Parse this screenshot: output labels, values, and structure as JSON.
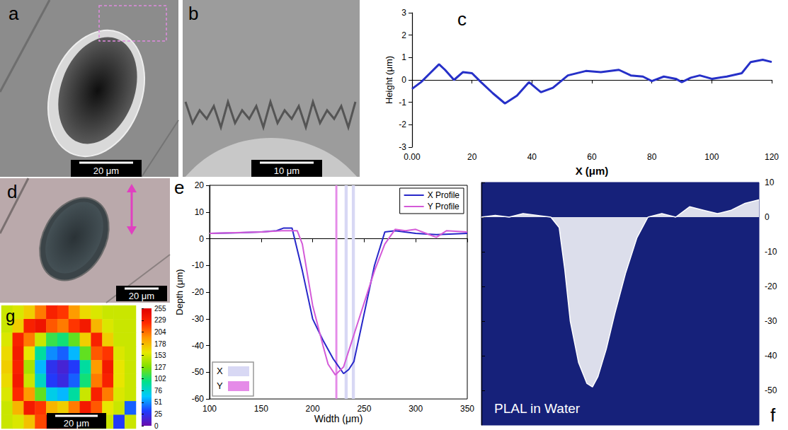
{
  "panels": {
    "a": {
      "title": "a",
      "scale_bar": "20 μm"
    },
    "b": {
      "title": "b",
      "scale_bar": "10 μm"
    },
    "d": {
      "title": "d",
      "scale_bar": "20 μm"
    }
  },
  "chart_data": [
    {
      "type": "line",
      "title": "c",
      "x_label": "X (μm)",
      "y_label": "Height (μm)",
      "x": [
        0,
        3,
        6,
        9,
        11,
        14,
        17,
        20,
        23,
        27,
        31,
        35,
        39,
        43,
        47,
        52,
        58,
        63,
        69,
        73,
        77,
        80,
        84,
        88,
        90,
        93,
        96,
        100,
        105,
        110,
        113,
        117,
        120
      ],
      "values": [
        -0.4,
        -0.1,
        0.3,
        0.7,
        0.45,
        0.0,
        0.35,
        0.3,
        -0.1,
        -0.6,
        -1.05,
        -0.7,
        -0.1,
        -0.55,
        -0.35,
        0.2,
        0.4,
        0.35,
        0.45,
        0.2,
        0.15,
        -0.05,
        0.15,
        0.05,
        -0.1,
        0.1,
        0.2,
        0.05,
        0.15,
        0.3,
        0.8,
        0.9,
        0.8
      ],
      "color": "#2630c8",
      "xlim": [
        0,
        120
      ],
      "xticks": [
        {
          "value": 0,
          "label": "0.00"
        },
        20,
        40,
        60,
        80,
        100,
        120
      ],
      "ylim": [
        -3,
        3
      ],
      "yticks": [
        -3,
        -2,
        -1,
        0,
        1,
        2,
        3
      ],
      "grid": false
    },
    {
      "type": "line",
      "title": "e",
      "x_label": "Width (μm)",
      "y_label": "Depth (μm)",
      "series": [
        {
          "name": "X Profile",
          "color": "#2727c9",
          "x": [
            100,
            125,
            150,
            165,
            172,
            180,
            190,
            200,
            210,
            220,
            230,
            235,
            240,
            250,
            260,
            270,
            280,
            300,
            320,
            350
          ],
          "values": [
            2,
            2.2,
            2.5,
            3,
            4,
            4,
            -12,
            -30,
            -38,
            -45,
            -50.5,
            -49,
            -46,
            -28,
            -10,
            2.5,
            3,
            2,
            1.5,
            2
          ]
        },
        {
          "name": "Y Profile",
          "color": "#d45ad8",
          "x": [
            100,
            150,
            170,
            185,
            190,
            200,
            210,
            215,
            222,
            230,
            240,
            250,
            260,
            270,
            280,
            290,
            300,
            310,
            320,
            330,
            350
          ],
          "values": [
            2,
            2.5,
            3,
            3,
            -2,
            -25,
            -40,
            -47,
            -51,
            -48,
            -36,
            -24,
            -12,
            -2,
            3.5,
            3,
            3.5,
            2,
            0.5,
            3,
            2.5
          ]
        }
      ],
      "bands": [
        {
          "name": "X",
          "color": "#d8d8f4",
          "ranges": [
            [
              231,
              234
            ],
            [
              238,
              241
            ]
          ]
        },
        {
          "name": "Y",
          "color": "#e58be8",
          "ranges": [
            [
              222,
              224
            ]
          ]
        }
      ],
      "xlim": [
        100,
        350
      ],
      "xticks": [
        100,
        150,
        200,
        250,
        300,
        350
      ],
      "ylim": [
        -60,
        20
      ],
      "yticks": [
        -60,
        -50,
        -40,
        -30,
        -20,
        -10,
        0,
        10,
        20
      ],
      "legend": "top-right",
      "grid": false
    },
    {
      "type": "area",
      "title": "f",
      "annotations": [
        "PLAL in Water"
      ],
      "x": [
        0,
        5,
        10,
        15,
        20,
        25,
        28,
        30,
        32,
        35,
        38,
        40,
        42,
        45,
        48,
        52,
        56,
        60,
        65,
        70,
        75,
        80,
        85,
        90,
        95,
        100
      ],
      "values": [
        0,
        0.5,
        0,
        1,
        0.5,
        0,
        -3,
        -15,
        -30,
        -42,
        -48,
        -49,
        -46,
        -38,
        -28,
        -16,
        -6,
        0,
        1,
        0,
        3,
        2,
        1,
        2,
        4,
        5
      ],
      "color": "#ffffff",
      "xlim": [
        0,
        100
      ],
      "ylim": [
        -60,
        10
      ],
      "yticks": [
        10,
        0,
        -10,
        -20,
        -30,
        -40,
        -50
      ],
      "tick_labels": "y",
      "grid": false
    },
    {
      "type": "heatmap",
      "title": "g",
      "annotations": [
        "20 μm"
      ],
      "cells": [
        [
          150,
          155,
          170,
          200,
          230,
          220,
          190,
          165,
          155,
          150,
          150,
          150
        ],
        [
          150,
          170,
          230,
          240,
          210,
          200,
          220,
          235,
          180,
          155,
          150,
          150
        ],
        [
          155,
          230,
          200,
          150,
          110,
          100,
          120,
          170,
          230,
          170,
          150,
          150
        ],
        [
          165,
          235,
          160,
          90,
          50,
          40,
          60,
          120,
          210,
          220,
          155,
          150
        ],
        [
          170,
          230,
          140,
          60,
          25,
          15,
          30,
          90,
          190,
          235,
          160,
          150
        ],
        [
          165,
          235,
          150,
          80,
          30,
          20,
          40,
          100,
          200,
          230,
          160,
          150
        ],
        [
          155,
          225,
          190,
          120,
          70,
          60,
          90,
          150,
          230,
          200,
          155,
          150
        ],
        [
          150,
          180,
          235,
          220,
          180,
          170,
          200,
          235,
          210,
          160,
          150,
          40
        ],
        [
          150,
          155,
          175,
          215,
          235,
          230,
          210,
          170,
          155,
          150,
          30,
          150
        ]
      ],
      "colorbar": {
        "range": [
          0,
          255
        ],
        "ticks": [
          0,
          25,
          51,
          76,
          102,
          127,
          153,
          178,
          204,
          229,
          255
        ]
      },
      "tick_labels": false
    }
  ]
}
